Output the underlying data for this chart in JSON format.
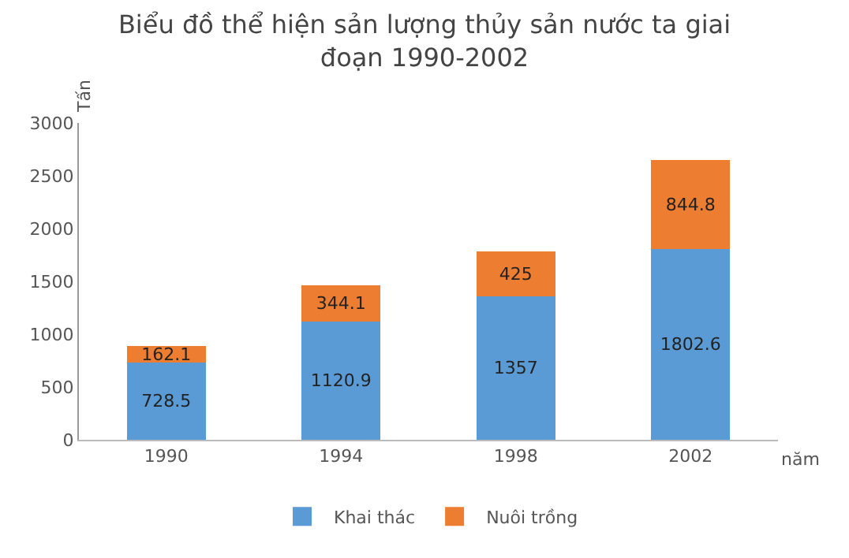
{
  "chart_data": {
    "type": "bar",
    "title": "Biểu đồ thể hiện sản lượng thủy sản nước ta giai đoạn 1990-2002",
    "xlabel": "năm",
    "ylabel": "Tấn",
    "categories": [
      "1990",
      "1994",
      "1998",
      "2002"
    ],
    "stacked": true,
    "data_labels": true,
    "grid": false,
    "legend": "bottom",
    "ylim": [
      0,
      3000
    ],
    "yticks": [
      0,
      500,
      1000,
      1500,
      2000,
      2500,
      3000
    ],
    "series": [
      {
        "name": "Khai thác",
        "color": "#5b9bd5",
        "values": [
          728.5,
          1120.9,
          1357,
          1802.6
        ]
      },
      {
        "name": "Nuôi trồng",
        "color": "#ed7d31",
        "values": [
          162.1,
          344.1,
          425,
          844.8
        ]
      }
    ]
  }
}
